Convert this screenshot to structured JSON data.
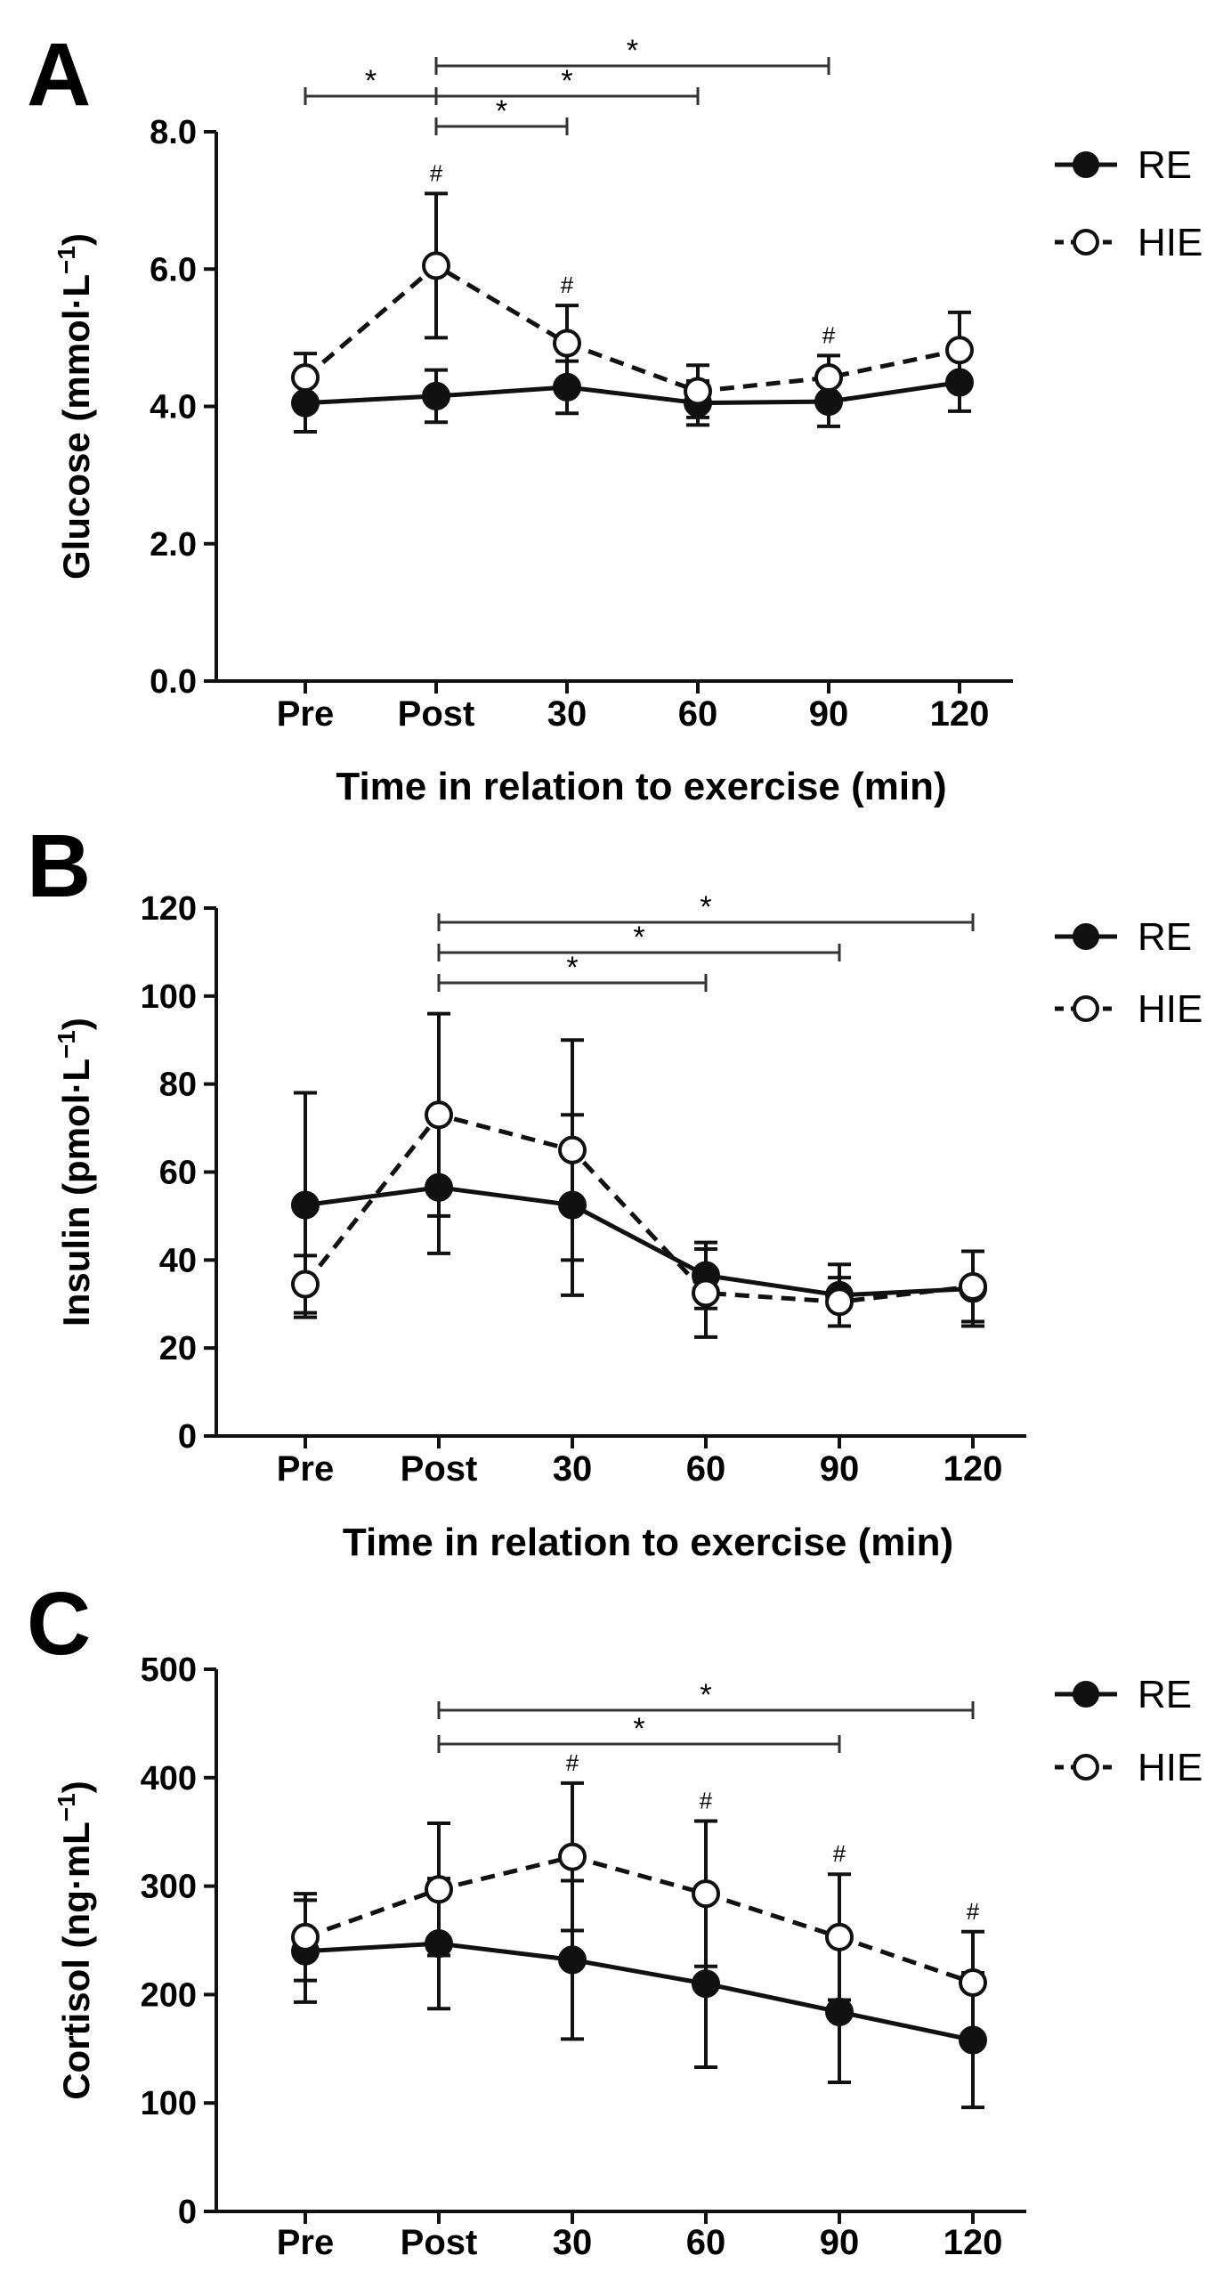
{
  "chart_data": [
    {
      "panel": "A",
      "type": "line",
      "categories": [
        "Pre",
        "Post",
        "30",
        "60",
        "90",
        "120"
      ],
      "ylabel": "Glucose (mmol·L",
      "ylabel_sup": "−1",
      "ylabel_close": ")",
      "xlabel": "Time in relation to exercise (min)",
      "ylim": [
        0,
        8
      ],
      "yticks": [
        0,
        2,
        4,
        6,
        8
      ],
      "ytick_labels": [
        "0.0",
        "2.0",
        "4.0",
        "6.0",
        "8.0"
      ],
      "series": [
        {
          "name": "RE",
          "style": "solid-filled",
          "values": [
            4.05,
            4.15,
            4.28,
            4.05,
            4.07,
            4.35
          ],
          "err": [
            0.42,
            0.38,
            0.38,
            0.32,
            0.36,
            0.42
          ]
        },
        {
          "name": "HIE",
          "style": "dashed-open",
          "values": [
            4.42,
            6.05,
            4.92,
            4.22,
            4.42,
            4.82
          ],
          "err": [
            0.35,
            1.05,
            0.55,
            0.38,
            0.32,
            0.55
          ]
        }
      ],
      "hash_marks": [
        {
          "category": "Post",
          "value": 7.1
        },
        {
          "category": "30",
          "value": 5.47
        },
        {
          "category": "90",
          "value": 4.74
        }
      ],
      "significance_brackets": [
        {
          "from": "Pre",
          "to": "Post",
          "label": "*"
        },
        {
          "from": "Post",
          "to": "90",
          "label": "*"
        },
        {
          "from": "Post",
          "to": "60",
          "label": "*"
        },
        {
          "from": "Post",
          "to": "30",
          "label": "*"
        }
      ],
      "legend": [
        "RE",
        "HIE"
      ]
    },
    {
      "panel": "B",
      "type": "line",
      "categories": [
        "Pre",
        "Post",
        "30",
        "60",
        "90",
        "120"
      ],
      "ylabel": "Insulin (pmol·L",
      "ylabel_sup": "−1",
      "ylabel_close": ")",
      "xlabel": "Time in relation to exercise (min)",
      "ylim": [
        0,
        120
      ],
      "yticks": [
        0,
        20,
        40,
        60,
        80,
        100,
        120
      ],
      "ytick_labels": [
        "0",
        "20",
        "40",
        "60",
        "80",
        "100",
        "120"
      ],
      "series": [
        {
          "name": "RE",
          "style": "solid-filled",
          "values": [
            52.5,
            56.5,
            52.5,
            36.5,
            32.0,
            33.5
          ],
          "err": [
            25.5,
            15.0,
            20.5,
            7.5,
            7.0,
            8.5
          ]
        },
        {
          "name": "HIE",
          "style": "dashed-open",
          "values": [
            34.5,
            73.0,
            65.0,
            32.5,
            30.5,
            34.0
          ],
          "err": [
            6.5,
            23.0,
            25.0,
            10.0,
            5.5,
            8.0
          ]
        }
      ],
      "hash_marks": [],
      "significance_brackets": [
        {
          "from": "Post",
          "to": "120",
          "label": "*"
        },
        {
          "from": "Post",
          "to": "90",
          "label": "*"
        },
        {
          "from": "Post",
          "to": "60",
          "label": "*"
        }
      ],
      "legend": [
        "RE",
        "HIE"
      ]
    },
    {
      "panel": "C",
      "type": "line",
      "categories": [
        "Pre",
        "Post",
        "30",
        "60",
        "90",
        "120"
      ],
      "ylabel": "Cortisol (ng·mL",
      "ylabel_sup": "−1",
      "ylabel_close": ")",
      "xlabel": "Time in relation to exercise (min)",
      "ylim": [
        0,
        500
      ],
      "yticks": [
        0,
        100,
        200,
        300,
        400,
        500
      ],
      "ytick_labels": [
        "0",
        "100",
        "200",
        "300",
        "400",
        "500"
      ],
      "series": [
        {
          "name": "RE",
          "style": "solid-filled",
          "values": [
            240,
            247,
            232,
            210,
            184,
            158
          ],
          "err": [
            47,
            60,
            73,
            77,
            65,
            62
          ]
        },
        {
          "name": "HIE",
          "style": "dashed-open",
          "values": [
            253,
            297,
            327,
            293,
            253,
            211
          ],
          "err": [
            40,
            61,
            68,
            67,
            58,
            47
          ]
        }
      ],
      "hash_marks": [
        {
          "category": "30",
          "value": 395
        },
        {
          "category": "60",
          "value": 360
        },
        {
          "category": "90",
          "value": 311
        },
        {
          "category": "120",
          "value": 258
        }
      ],
      "significance_brackets": [
        {
          "from": "Post",
          "to": "120",
          "label": "*"
        },
        {
          "from": "Post",
          "to": "90",
          "label": "*"
        }
      ],
      "legend": [
        "RE",
        "HIE"
      ]
    }
  ]
}
